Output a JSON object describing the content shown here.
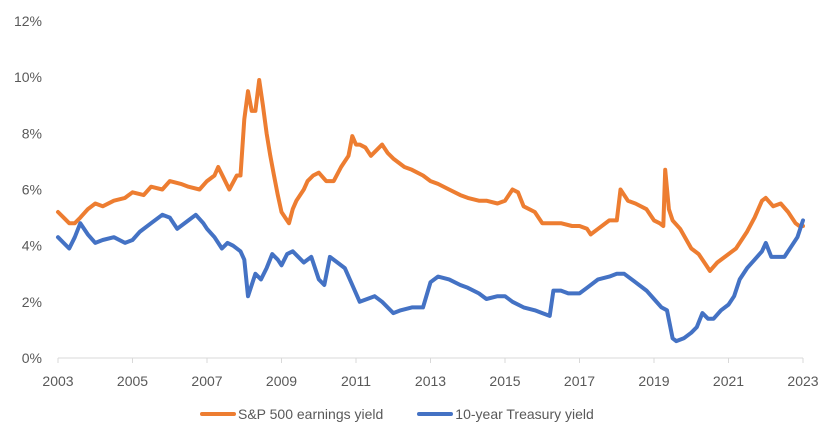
{
  "chart_data": {
    "type": "line",
    "title": "",
    "xlabel": "",
    "ylabel": "",
    "xlim": [
      2003,
      2023
    ],
    "ylim": [
      0,
      12
    ],
    "grid": false,
    "legend_position": "bottom",
    "x_ticks": [
      "2003",
      "2005",
      "2007",
      "2009",
      "2011",
      "2013",
      "2015",
      "2017",
      "2019",
      "2021",
      "2023"
    ],
    "y_ticks": [
      "0%",
      "2%",
      "4%",
      "6%",
      "8%",
      "10%",
      "12%"
    ],
    "series": [
      {
        "name": "S&P 500 earnings yield",
        "color": "#ED7D31",
        "x": [
          2003.0,
          2003.15,
          2003.3,
          2003.45,
          2003.6,
          2003.8,
          2004.0,
          2004.2,
          2004.5,
          2004.8,
          2005.0,
          2005.3,
          2005.5,
          2005.8,
          2006.0,
          2006.3,
          2006.5,
          2006.8,
          2007.0,
          2007.2,
          2007.3,
          2007.45,
          2007.6,
          2007.8,
          2007.9,
          2008.0,
          2008.1,
          2008.2,
          2008.3,
          2008.4,
          2008.5,
          2008.6,
          2008.7,
          2008.8,
          2008.9,
          2009.0,
          2009.1,
          2009.2,
          2009.3,
          2009.4,
          2009.6,
          2009.7,
          2009.85,
          2010.0,
          2010.2,
          2010.4,
          2010.6,
          2010.8,
          2010.9,
          2011.0,
          2011.1,
          2011.25,
          2011.4,
          2011.55,
          2011.7,
          2011.85,
          2012.0,
          2012.3,
          2012.5,
          2012.8,
          2013.0,
          2013.2,
          2013.5,
          2013.8,
          2014.0,
          2014.3,
          2014.5,
          2014.8,
          2015.0,
          2015.2,
          2015.35,
          2015.5,
          2015.8,
          2016.0,
          2016.3,
          2016.5,
          2016.8,
          2017.0,
          2017.2,
          2017.3,
          2017.5,
          2017.8,
          2018.0,
          2018.1,
          2018.3,
          2018.5,
          2018.8,
          2019.0,
          2019.15,
          2019.25,
          2019.3,
          2019.4,
          2019.5,
          2019.7,
          2020.0,
          2020.2,
          2020.4,
          2020.5,
          2020.7,
          2021.0,
          2021.2,
          2021.5,
          2021.7,
          2021.9,
          2022.0,
          2022.2,
          2022.4,
          2022.6,
          2022.8,
          2022.9,
          2023.0
        ],
        "values": [
          5.2,
          5.0,
          4.8,
          4.8,
          5.0,
          5.3,
          5.5,
          5.4,
          5.6,
          5.7,
          5.9,
          5.8,
          6.1,
          6.0,
          6.3,
          6.2,
          6.1,
          6.0,
          6.3,
          6.5,
          6.8,
          6.4,
          6.0,
          6.5,
          6.5,
          8.5,
          9.5,
          8.8,
          8.8,
          9.9,
          9.0,
          8.0,
          7.2,
          6.5,
          5.8,
          5.2,
          5.0,
          4.8,
          5.3,
          5.6,
          6.0,
          6.3,
          6.5,
          6.6,
          6.3,
          6.3,
          6.8,
          7.2,
          7.9,
          7.6,
          7.6,
          7.5,
          7.2,
          7.4,
          7.6,
          7.3,
          7.1,
          6.8,
          6.7,
          6.5,
          6.3,
          6.2,
          6.0,
          5.8,
          5.7,
          5.6,
          5.6,
          5.5,
          5.6,
          6.0,
          5.9,
          5.4,
          5.2,
          4.8,
          4.8,
          4.8,
          4.7,
          4.7,
          4.6,
          4.4,
          4.6,
          4.9,
          4.9,
          6.0,
          5.6,
          5.5,
          5.3,
          4.9,
          4.8,
          4.7,
          6.7,
          5.3,
          4.9,
          4.6,
          3.9,
          3.7,
          3.3,
          3.1,
          3.4,
          3.7,
          3.9,
          4.5,
          5.0,
          5.6,
          5.7,
          5.4,
          5.5,
          5.2,
          4.8,
          4.7,
          4.7
        ]
      },
      {
        "name": "10-year Treasury yield",
        "color": "#4472C4",
        "x": [
          2003.0,
          2003.15,
          2003.3,
          2003.45,
          2003.6,
          2003.8,
          2004.0,
          2004.2,
          2004.5,
          2004.8,
          2005.0,
          2005.2,
          2005.5,
          2005.8,
          2006.0,
          2006.2,
          2006.5,
          2006.7,
          2006.9,
          2007.0,
          2007.2,
          2007.4,
          2007.55,
          2007.7,
          2007.9,
          2008.0,
          2008.1,
          2008.2,
          2008.3,
          2008.45,
          2008.6,
          2008.75,
          2008.9,
          2009.0,
          2009.15,
          2009.3,
          2009.45,
          2009.6,
          2009.8,
          2010.0,
          2010.15,
          2010.3,
          2010.5,
          2010.7,
          2010.9,
          2011.1,
          2011.3,
          2011.5,
          2011.7,
          2012.0,
          2012.2,
          2012.5,
          2012.8,
          2013.0,
          2013.2,
          2013.5,
          2013.8,
          2014.0,
          2014.3,
          2014.5,
          2014.8,
          2015.0,
          2015.2,
          2015.5,
          2015.8,
          2016.0,
          2016.2,
          2016.3,
          2016.5,
          2016.7,
          2017.0,
          2017.2,
          2017.5,
          2017.8,
          2018.0,
          2018.2,
          2018.5,
          2018.8,
          2019.0,
          2019.2,
          2019.35,
          2019.5,
          2019.6,
          2019.8,
          2020.0,
          2020.15,
          2020.3,
          2020.45,
          2020.6,
          2020.8,
          2021.0,
          2021.15,
          2021.3,
          2021.5,
          2021.7,
          2021.9,
          2022.0,
          2022.15,
          2022.3,
          2022.5,
          2022.7,
          2022.85,
          2023.0
        ],
        "values": [
          4.3,
          4.1,
          3.9,
          4.3,
          4.8,
          4.4,
          4.1,
          4.2,
          4.3,
          4.1,
          4.2,
          4.5,
          4.8,
          5.1,
          5.0,
          4.6,
          4.9,
          5.1,
          4.8,
          4.6,
          4.3,
          3.9,
          4.1,
          4.0,
          3.8,
          3.5,
          2.2,
          2.6,
          3.0,
          2.8,
          3.2,
          3.7,
          3.5,
          3.3,
          3.7,
          3.8,
          3.6,
          3.4,
          3.6,
          2.8,
          2.6,
          3.6,
          3.4,
          3.2,
          2.6,
          2.0,
          2.1,
          2.2,
          2.0,
          1.6,
          1.7,
          1.8,
          1.8,
          2.7,
          2.9,
          2.8,
          2.6,
          2.5,
          2.3,
          2.1,
          2.2,
          2.2,
          2.0,
          1.8,
          1.7,
          1.6,
          1.5,
          2.4,
          2.4,
          2.3,
          2.3,
          2.5,
          2.8,
          2.9,
          3.0,
          3.0,
          2.7,
          2.4,
          2.1,
          1.8,
          1.7,
          0.7,
          0.6,
          0.7,
          0.9,
          1.1,
          1.6,
          1.4,
          1.4,
          1.7,
          1.9,
          2.2,
          2.8,
          3.2,
          3.5,
          3.8,
          4.1,
          3.6,
          3.6,
          3.6,
          4.0,
          4.3,
          4.9
        ]
      }
    ]
  }
}
